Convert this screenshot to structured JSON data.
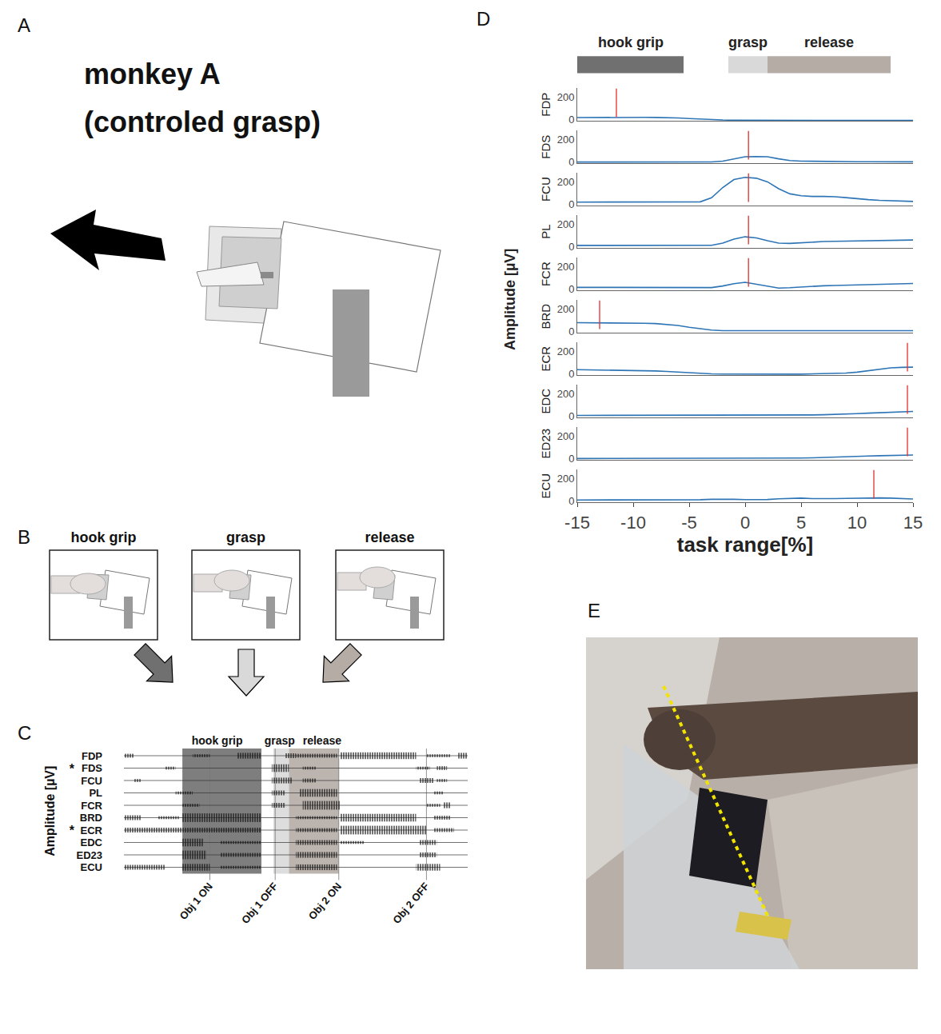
{
  "panels": [
    {
      "letter": "A",
      "title": "monkey A (controled grasp)"
    },
    {
      "letter": "B",
      "steps": [
        {
          "label": "hook grip",
          "color": "#707070"
        },
        {
          "label": "grasp",
          "color": "#d9d9d9"
        },
        {
          "label": "release",
          "color": "#b5aca6"
        }
      ]
    },
    {
      "letter": "C",
      "y_label": "Amplitude [µV]",
      "tlim": [
        0,
        100
      ],
      "phases": [
        {
          "name": "hook grip",
          "start": 17,
          "end": 40,
          "color": "#707070"
        },
        {
          "name": "grasp",
          "start": 43.5,
          "end": 48,
          "color": "#d9d9d9"
        },
        {
          "name": "release",
          "start": 48,
          "end": 62.5,
          "color": "#b5aca6"
        }
      ],
      "events": [
        {
          "label": "Obj 1 ON",
          "t": 25
        },
        {
          "label": "Obj 1 OFF",
          "t": 44
        },
        {
          "label": "Obj 2 ON",
          "t": 62.5
        },
        {
          "label": "Obj 2 OFF",
          "t": 88
        }
      ],
      "rows": [
        {
          "name": "FDP",
          "bursts": [
            [
              0,
              3,
              0.4
            ],
            [
              20,
              25,
              0.3
            ],
            [
              33,
              40,
              0.6
            ],
            [
              47,
              50,
              0.5
            ],
            [
              50,
              62,
              0.4
            ],
            [
              63,
              85,
              0.7
            ],
            [
              88,
              95,
              0.3
            ],
            [
              97,
              100,
              0.6
            ]
          ]
        },
        {
          "name": "FDS",
          "note": "*",
          "bursts": [
            [
              12,
              15,
              0.3
            ],
            [
              43,
              48,
              0.8
            ],
            [
              52,
              56,
              0.3
            ],
            [
              85,
              89,
              0.3
            ],
            [
              91,
              94,
              0.4
            ]
          ]
        },
        {
          "name": "FCU",
          "bursts": [
            [
              3,
              5,
              0.3
            ],
            [
              43,
              49,
              0.6
            ],
            [
              52,
              56,
              0.4
            ],
            [
              86,
              90,
              0.5
            ],
            [
              91,
              94,
              0.3
            ]
          ]
        },
        {
          "name": "PL",
          "bursts": [
            [
              15,
              20,
              0.3
            ],
            [
              43,
              47,
              0.5
            ],
            [
              51,
              62,
              0.8
            ],
            [
              90,
              93,
              0.3
            ]
          ]
        },
        {
          "name": "FCR",
          "bursts": [
            [
              17,
              22,
              0.3
            ],
            [
              43,
              47,
              0.5
            ],
            [
              52,
              63,
              0.9
            ],
            [
              88,
              92,
              0.3
            ],
            [
              93,
              95,
              0.6
            ]
          ]
        },
        {
          "name": "BRD",
          "bursts": [
            [
              0,
              5,
              0.5
            ],
            [
              10,
              16,
              0.3
            ],
            [
              17,
              40,
              0.9
            ],
            [
              50,
              62,
              0.3
            ],
            [
              63,
              85,
              0.8
            ],
            [
              90,
              95,
              0.4
            ]
          ]
        },
        {
          "name": "ECR",
          "note": "*",
          "bursts": [
            [
              0,
              17,
              0.5
            ],
            [
              17,
              40,
              0.5
            ],
            [
              50,
              62,
              0.4
            ],
            [
              63,
              88,
              0.9
            ],
            [
              90,
              96,
              0.4
            ]
          ]
        },
        {
          "name": "EDC",
          "bursts": [
            [
              17,
              23,
              0.8
            ],
            [
              28,
              40,
              0.3
            ],
            [
              50,
              62,
              0.5
            ],
            [
              63,
              70,
              0.3
            ],
            [
              86,
              91,
              0.5
            ]
          ]
        },
        {
          "name": "ED23",
          "bursts": [
            [
              17,
              24,
              0.9
            ],
            [
              28,
              40,
              0.4
            ],
            [
              50,
              62,
              0.6
            ],
            [
              86,
              91,
              0.5
            ]
          ]
        },
        {
          "name": "ECU",
          "bursts": [
            [
              0,
              12,
              0.5
            ],
            [
              17,
              25,
              0.7
            ],
            [
              28,
              40,
              0.3
            ],
            [
              50,
              62,
              0.6
            ],
            [
              85,
              92,
              0.7
            ]
          ]
        }
      ]
    },
    {
      "letter": "E"
    }
  ],
  "chart_data": {
    "letter": "D",
    "type": "line",
    "x_label": "task range[%]",
    "y_label": "Amplitude [µV]",
    "xlim": [
      -15,
      15
    ],
    "xticks": [
      -15,
      -10,
      -5,
      0,
      5,
      10,
      15
    ],
    "ylim": [
      -10,
      280
    ],
    "yticks": [
      0,
      200
    ],
    "event_color": "#e0302f",
    "phases": [
      {
        "name": "hook grip",
        "start": -15,
        "end": -5.5,
        "color": "#707070"
      },
      {
        "name": "grasp",
        "start": -1.5,
        "end": 2,
        "color": "#d9d9d9"
      },
      {
        "name": "release",
        "start": 2,
        "end": 13,
        "color": "#b5aca6"
      }
    ],
    "x": [
      -15,
      -14,
      -13,
      -12,
      -11,
      -10,
      -9,
      -8,
      -7,
      -6,
      -5,
      -4,
      -3,
      -2,
      -1,
      0,
      1,
      2,
      3,
      4,
      5,
      6,
      7,
      8,
      9,
      10,
      11,
      12,
      13,
      14,
      15
    ],
    "series": [
      {
        "name": "FDP",
        "color": "#2e75b6",
        "event_x": -11.5,
        "values": [
          20,
          21,
          22,
          22,
          23,
          23,
          22,
          21,
          20,
          17,
          12,
          6,
          2,
          -1,
          -3,
          -3,
          -2,
          -2,
          -1,
          -1,
          0,
          0,
          0,
          0,
          -1,
          -1,
          -2,
          -3,
          -3,
          -4,
          -5
        ]
      },
      {
        "name": "FDS",
        "color": "#2e75b6",
        "event_x": 0.3,
        "values": [
          2,
          2,
          2,
          2,
          2,
          2,
          2,
          2,
          2,
          2,
          2,
          2,
          3,
          10,
          30,
          48,
          50,
          48,
          30,
          15,
          10,
          8,
          7,
          6,
          5,
          5,
          5,
          4,
          4,
          4,
          4
        ]
      },
      {
        "name": "FCU",
        "color": "#2e75b6",
        "event_x": 0.3,
        "values": [
          22,
          22,
          22,
          22,
          22,
          21,
          21,
          20,
          20,
          20,
          20,
          25,
          60,
          150,
          220,
          240,
          232,
          200,
          140,
          95,
          78,
          72,
          72,
          70,
          62,
          52,
          44,
          38,
          34,
          30,
          28
        ]
      },
      {
        "name": "PL",
        "color": "#2e75b6",
        "event_x": 0.3,
        "values": [
          14,
          14,
          14,
          14,
          13,
          13,
          13,
          12,
          12,
          12,
          12,
          12,
          15,
          35,
          70,
          90,
          80,
          55,
          35,
          32,
          38,
          44,
          48,
          50,
          52,
          52,
          54,
          56,
          58,
          60,
          62
        ]
      },
      {
        "name": "FCR",
        "color": "#2e75b6",
        "event_x": 0.3,
        "values": [
          18,
          18,
          18,
          17,
          17,
          16,
          16,
          15,
          15,
          15,
          14,
          14,
          16,
          30,
          50,
          62,
          45,
          25,
          12,
          15,
          22,
          28,
          32,
          34,
          36,
          38,
          40,
          43,
          46,
          50,
          52
        ]
      },
      {
        "name": "BRD",
        "color": "#2e75b6",
        "event_x": -13,
        "values": [
          80,
          80,
          80,
          79,
          78,
          77,
          75,
          72,
          66,
          55,
          40,
          25,
          15,
          10,
          9,
          9,
          10,
          10,
          10,
          10,
          10,
          10,
          10,
          10,
          10,
          10,
          10,
          10,
          10,
          10,
          10
        ]
      },
      {
        "name": "ECR",
        "color": "#2e75b6",
        "event_x": 14.5,
        "values": [
          40,
          39,
          38,
          37,
          36,
          34,
          32,
          28,
          24,
          18,
          12,
          6,
          3,
          1,
          0,
          0,
          0,
          0,
          0,
          0,
          0,
          2,
          4,
          6,
          10,
          18,
          30,
          45,
          55,
          60,
          62
        ]
      },
      {
        "name": "EDC",
        "color": "#2e75b6",
        "event_x": 14.5,
        "values": [
          10,
          10,
          10,
          10,
          10,
          11,
          11,
          11,
          12,
          12,
          12,
          12,
          14,
          14,
          14,
          15,
          12,
          10,
          10,
          10,
          12,
          14,
          16,
          18,
          22,
          26,
          30,
          34,
          38,
          42,
          45
        ]
      },
      {
        "name": "ED23",
        "color": "#2e75b6",
        "event_x": 14.5,
        "values": [
          4,
          4,
          4,
          4,
          4,
          4,
          4,
          4,
          4,
          4,
          4,
          4,
          4,
          4,
          5,
          5,
          5,
          5,
          5,
          6,
          8,
          10,
          14,
          18,
          22,
          24,
          26,
          28,
          30,
          32,
          34
        ]
      },
      {
        "name": "ECU",
        "color": "#2e75b6",
        "event_x": 11.5,
        "values": [
          12,
          12,
          11,
          11,
          10,
          10,
          10,
          9,
          9,
          10,
          11,
          14,
          18,
          20,
          18,
          15,
          14,
          16,
          22,
          26,
          28,
          24,
          22,
          24,
          26,
          28,
          30,
          30,
          28,
          24,
          20
        ]
      }
    ]
  }
}
